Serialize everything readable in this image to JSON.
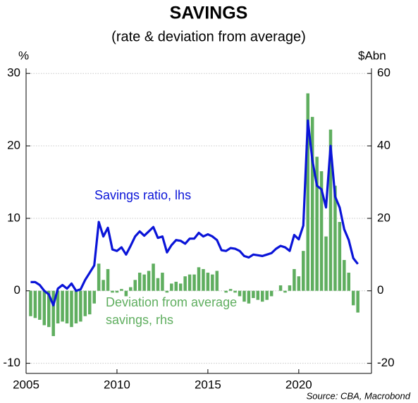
{
  "chart_data": {
    "type": "bar_line",
    "title": "SAVINGS",
    "subtitle": "(rate & deviation from average)",
    "ylabel": "%",
    "y2label": "$Abn",
    "source": "Source: CBA, Macrobond",
    "x": [
      2005.25,
      2005.5,
      2005.75,
      2006,
      2006.25,
      2006.5,
      2006.75,
      2007,
      2007.25,
      2007.5,
      2007.75,
      2008,
      2008.25,
      2008.5,
      2008.75,
      2009,
      2009.25,
      2009.5,
      2009.75,
      2010,
      2010.25,
      2010.5,
      2010.75,
      2011,
      2011.25,
      2011.5,
      2011.75,
      2012,
      2012.25,
      2012.5,
      2012.75,
      2013,
      2013.25,
      2013.5,
      2013.75,
      2014,
      2014.25,
      2014.5,
      2014.75,
      2015,
      2015.25,
      2015.5,
      2015.75,
      2016,
      2016.25,
      2016.5,
      2016.75,
      2017,
      2017.25,
      2017.5,
      2017.75,
      2018,
      2018.25,
      2018.5,
      2018.75,
      2019,
      2019.25,
      2019.5,
      2019.75,
      2020,
      2020.25,
      2020.5,
      2020.75,
      2021,
      2021.25,
      2021.5,
      2021.75,
      2022,
      2022.25,
      2022.5,
      2022.75,
      2023,
      2023.25
    ],
    "xlim": [
      2005,
      2024
    ],
    "xticks": [
      2005,
      2010,
      2015,
      2020
    ],
    "ylim": [
      -11.4,
      30.7
    ],
    "yticks": [
      -10,
      0,
      10,
      20,
      30
    ],
    "y2lim": [
      -22.8,
      61.4
    ],
    "y2ticks": [
      -20,
      0,
      20,
      40,
      60
    ],
    "grid": true,
    "series": [
      {
        "name": "Savings ratio, lhs",
        "type": "line",
        "color": "#0a14d8",
        "values": [
          1.2,
          1.2,
          0.8,
          0.0,
          -0.5,
          -2.0,
          0.3,
          0.8,
          0.3,
          1.0,
          0.0,
          0.2,
          1.5,
          2.5,
          3.5,
          9.5,
          7.5,
          8.7,
          5.7,
          5.5,
          6.0,
          5.0,
          6.2,
          7.5,
          8.2,
          7.6,
          8.2,
          8.8,
          7.3,
          7.5,
          5.3,
          6.3,
          7.0,
          6.9,
          6.5,
          7.2,
          7.2,
          8.0,
          7.5,
          7.8,
          7.5,
          7.0,
          5.6,
          5.5,
          5.9,
          5.8,
          5.5,
          4.8,
          4.6,
          5.0,
          4.9,
          4.8,
          5.0,
          5.2,
          5.8,
          6.2,
          6.0,
          5.5,
          7.7,
          7.1,
          9.0,
          23.5,
          18,
          14.5,
          14,
          11.5,
          20,
          13,
          11.5,
          8.5,
          7,
          4.5,
          3.7
        ]
      },
      {
        "name": "Deviation from average savings, rhs",
        "type": "bar",
        "axis": "y2",
        "color": "#5fae5f",
        "values": [
          -7,
          -7.5,
          -8,
          -9.5,
          -10,
          -12.5,
          -9,
          -8.5,
          -9,
          -10,
          -9,
          -8.5,
          -7,
          -6.5,
          -3.5,
          7.5,
          3,
          6,
          -0.5,
          -0.5,
          0.5,
          -1.5,
          1,
          3,
          5,
          4.5,
          5.5,
          7.5,
          3.5,
          5,
          -0.5,
          2,
          2.5,
          2,
          4,
          4.5,
          4.5,
          6.5,
          6,
          5,
          4.5,
          5.5,
          0,
          -0.5,
          0.5,
          -0.5,
          -1.5,
          -3,
          -3.5,
          -2,
          -2.5,
          -3,
          -2.5,
          -1.5,
          0,
          1.5,
          -0.5,
          1.5,
          6,
          4,
          11,
          54.5,
          48,
          37,
          33,
          15,
          44.5,
          29,
          19,
          8.5,
          5,
          -4,
          -6
        ]
      }
    ]
  }
}
